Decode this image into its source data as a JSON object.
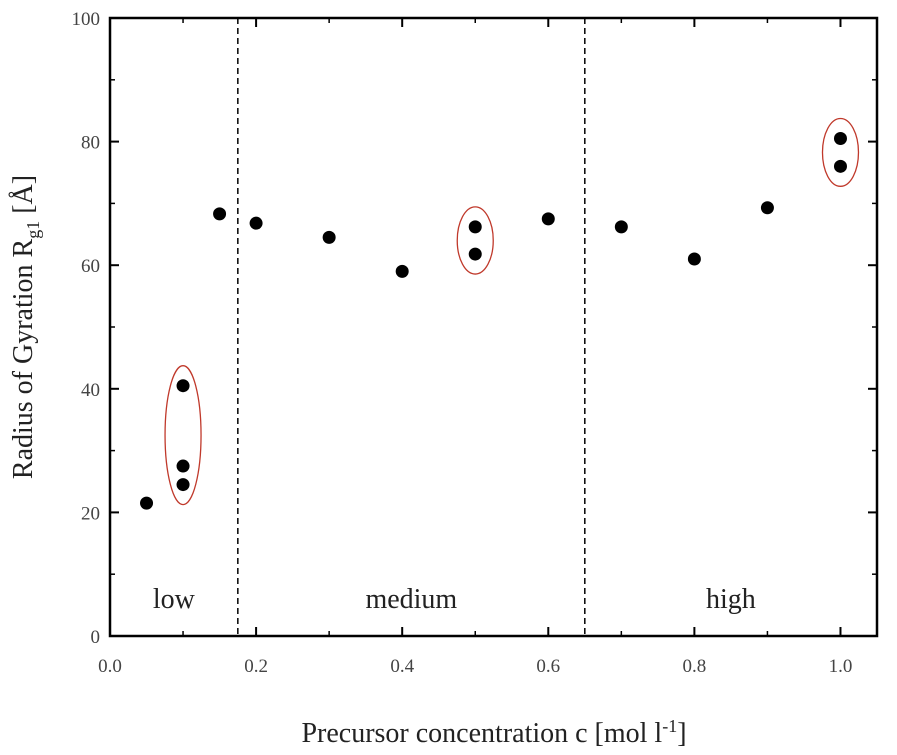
{
  "chart_data": {
    "type": "scatter",
    "xlabel": "Precursor concentration c [mol l",
    "xlabel_sup": "-1",
    "xlabel_end": "]",
    "ylabel": "Radius of Gyration R",
    "ylabel_sub": "g1",
    "ylabel_end": " [Å]",
    "xlim": [
      0.0,
      1.05
    ],
    "ylim": [
      0,
      100
    ],
    "x_ticks": [
      "0.0",
      "0.2",
      "0.4",
      "0.6",
      "0.8",
      "1.0"
    ],
    "y_ticks": [
      "0",
      "20",
      "40",
      "60",
      "80",
      "100"
    ],
    "grid": false,
    "points": [
      {
        "x": 0.05,
        "y": 21.5
      },
      {
        "x": 0.1,
        "y": 40.5
      },
      {
        "x": 0.1,
        "y": 27.5
      },
      {
        "x": 0.1,
        "y": 24.5
      },
      {
        "x": 0.15,
        "y": 68.3
      },
      {
        "x": 0.2,
        "y": 66.8
      },
      {
        "x": 0.3,
        "y": 64.5
      },
      {
        "x": 0.4,
        "y": 59.0
      },
      {
        "x": 0.5,
        "y": 66.2
      },
      {
        "x": 0.5,
        "y": 61.8
      },
      {
        "x": 0.6,
        "y": 67.5
      },
      {
        "x": 0.7,
        "y": 66.2
      },
      {
        "x": 0.8,
        "y": 61.0
      },
      {
        "x": 0.9,
        "y": 69.3
      },
      {
        "x": 1.0,
        "y": 80.5
      },
      {
        "x": 1.0,
        "y": 76.0
      }
    ],
    "dividers": [
      0.175,
      0.65
    ],
    "regions": [
      {
        "label": "low",
        "x": 0.0875
      },
      {
        "label": "medium",
        "x": 0.4125
      },
      {
        "label": "high",
        "x": 0.85
      }
    ],
    "highlight_groups": [
      {
        "x": 0.1,
        "y_range": [
          24.5,
          40.5
        ]
      },
      {
        "x": 0.5,
        "y_range": [
          61.8,
          66.2
        ]
      },
      {
        "x": 1.0,
        "y_range": [
          76.0,
          80.5
        ]
      }
    ],
    "marker_color": "#000000",
    "highlight_color": "#c0392b"
  }
}
